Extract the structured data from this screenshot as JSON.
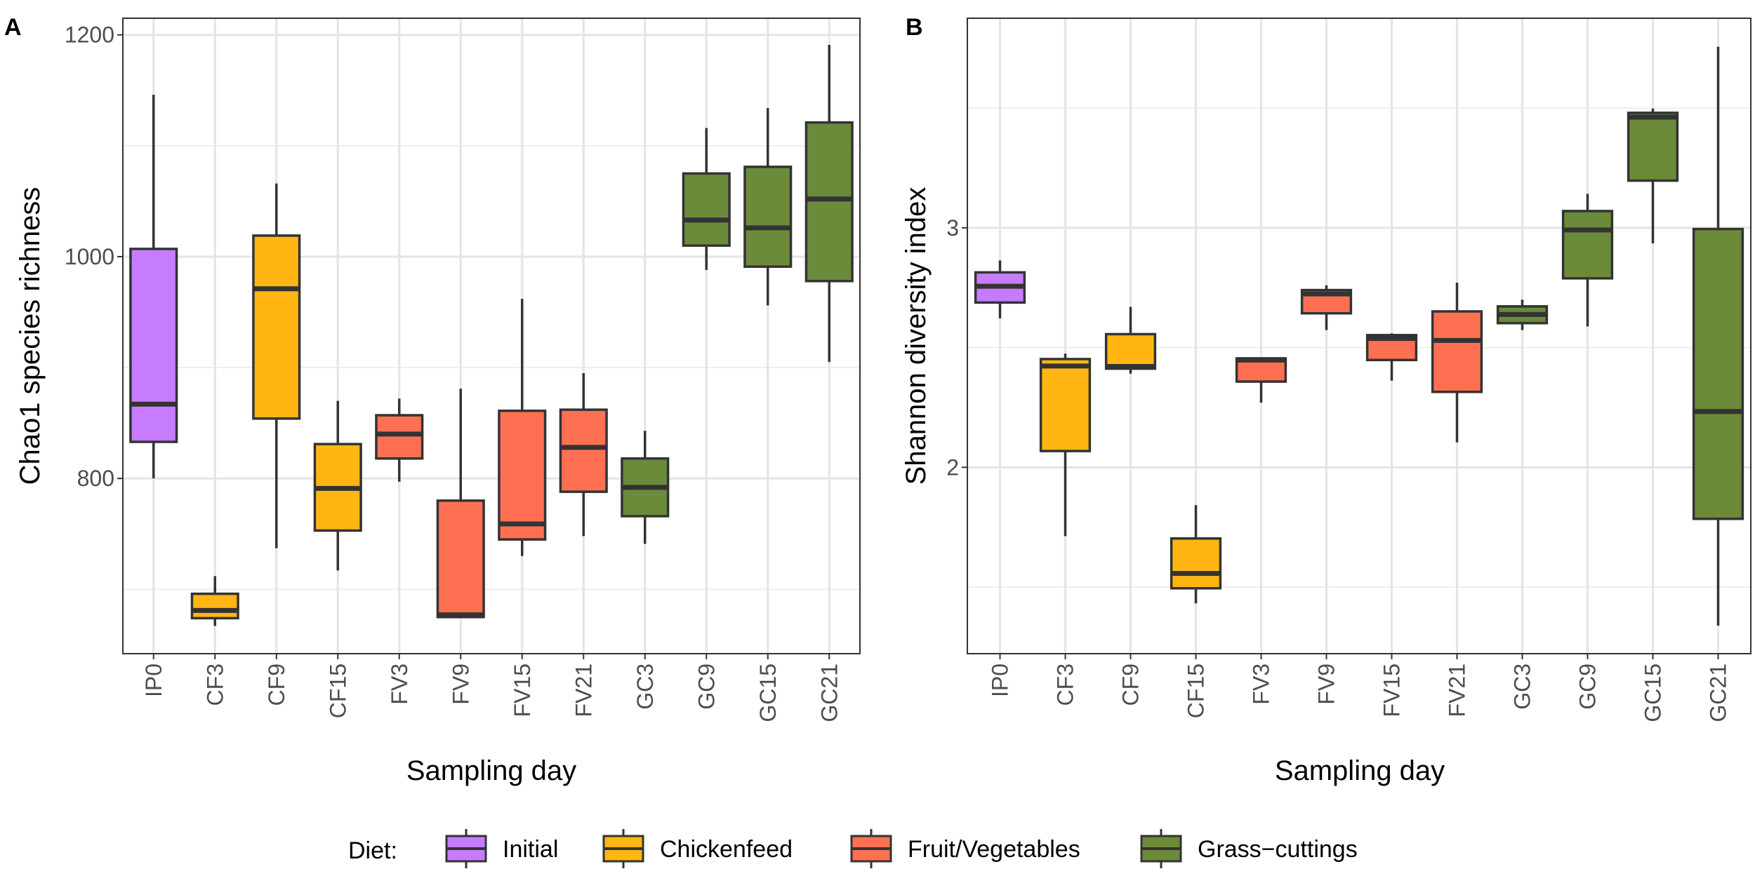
{
  "legend": {
    "title": "Diet:",
    "items": [
      {
        "label": "Initial",
        "color": "#C77CFF"
      },
      {
        "label": "Chickenfeed",
        "color": "#FFB612"
      },
      {
        "label": "Fruit/Vegetables",
        "color": "#FF7052"
      },
      {
        "label": "Grass−cuttings",
        "color": "#6B8A3A"
      }
    ],
    "placement": "bottom"
  },
  "chart_data": [
    {
      "type": "box",
      "panel_label": "A",
      "xlabel": "Sampling day",
      "ylabel": "Chao1 species richness",
      "ylim": [
        642,
        1215
      ],
      "yticks": [
        800,
        1000,
        1200
      ],
      "grid": true,
      "categories": [
        "IP0",
        "CF3",
        "CF9",
        "CF15",
        "FV3",
        "FV9",
        "FV15",
        "FV21",
        "GC3",
        "GC9",
        "GC15",
        "GC21"
      ],
      "groups": [
        "Initial",
        "Chickenfeed",
        "Chickenfeed",
        "Chickenfeed",
        "Fruit/Vegetables",
        "Fruit/Vegetables",
        "Fruit/Vegetables",
        "Fruit/Vegetables",
        "Grass−cuttings",
        "Grass−cuttings",
        "Grass−cuttings",
        "Grass−cuttings"
      ],
      "boxes": [
        {
          "min": 800,
          "q1": 833,
          "median": 867,
          "q3": 1007,
          "max": 1146
        },
        {
          "min": 667,
          "q1": 674,
          "median": 681,
          "q3": 696,
          "max": 712
        },
        {
          "min": 737,
          "q1": 854,
          "median": 971,
          "q3": 1019,
          "max": 1066
        },
        {
          "min": 717,
          "q1": 753,
          "median": 791,
          "q3": 831,
          "max": 870
        },
        {
          "min": 797,
          "q1": 818,
          "median": 840,
          "q3": 857,
          "max": 872
        },
        {
          "min": 674,
          "q1": 675,
          "median": 677,
          "q3": 780,
          "max": 881
        },
        {
          "min": 730,
          "q1": 745,
          "median": 759,
          "q3": 861,
          "max": 962
        },
        {
          "min": 748,
          "q1": 788,
          "median": 828,
          "q3": 862,
          "max": 895
        },
        {
          "min": 741,
          "q1": 766,
          "median": 792,
          "q3": 818,
          "max": 843
        },
        {
          "min": 988,
          "q1": 1010,
          "median": 1033,
          "q3": 1075,
          "max": 1116
        },
        {
          "min": 956,
          "q1": 991,
          "median": 1026,
          "q3": 1081,
          "max": 1134
        },
        {
          "min": 905,
          "q1": 978,
          "median": 1052,
          "q3": 1121,
          "max": 1191
        }
      ]
    },
    {
      "type": "box",
      "panel_label": "B",
      "xlabel": "Sampling day",
      "ylabel": "Shannon diversity index",
      "ylim": [
        1.222,
        3.875
      ],
      "yticks": [
        2,
        3
      ],
      "grid": true,
      "categories": [
        "IP0",
        "CF3",
        "CF9",
        "CF15",
        "FV3",
        "FV9",
        "FV15",
        "FV21",
        "GC3",
        "GC9",
        "GC15",
        "GC21"
      ],
      "groups": [
        "Initial",
        "Chickenfeed",
        "Chickenfeed",
        "Chickenfeed",
        "Fruit/Vegetables",
        "Fruit/Vegetables",
        "Fruit/Vegetables",
        "Fruit/Vegetables",
        "Grass−cuttings",
        "Grass−cuttings",
        "Grass−cuttings",
        "Grass−cuttings"
      ],
      "boxes": [
        {
          "min": 2.622,
          "q1": 2.688,
          "median": 2.756,
          "q3": 2.814,
          "max": 2.864
        },
        {
          "min": 1.713,
          "q1": 2.068,
          "median": 2.423,
          "q3": 2.452,
          "max": 2.475
        },
        {
          "min": 2.391,
          "q1": 2.412,
          "median": 2.421,
          "q3": 2.556,
          "max": 2.67
        },
        {
          "min": 1.432,
          "q1": 1.495,
          "median": 1.557,
          "q3": 1.703,
          "max": 1.842
        },
        {
          "min": 2.27,
          "q1": 2.358,
          "median": 2.448,
          "q3": 2.455,
          "max": 2.459
        },
        {
          "min": 2.573,
          "q1": 2.643,
          "median": 2.724,
          "q3": 2.74,
          "max": 2.76
        },
        {
          "min": 2.362,
          "q1": 2.448,
          "median": 2.538,
          "q3": 2.552,
          "max": 2.559
        },
        {
          "min": 2.104,
          "q1": 2.315,
          "median": 2.53,
          "q3": 2.651,
          "max": 2.771
        },
        {
          "min": 2.573,
          "q1": 2.602,
          "median": 2.638,
          "q3": 2.672,
          "max": 2.7
        },
        {
          "min": 2.588,
          "q1": 2.789,
          "median": 2.991,
          "q3": 3.07,
          "max": 3.142
        },
        {
          "min": 2.935,
          "q1": 3.197,
          "median": 3.462,
          "q3": 3.48,
          "max": 3.498
        },
        {
          "min": 1.339,
          "q1": 1.785,
          "median": 2.233,
          "q3": 2.995,
          "max": 3.756
        }
      ]
    }
  ]
}
